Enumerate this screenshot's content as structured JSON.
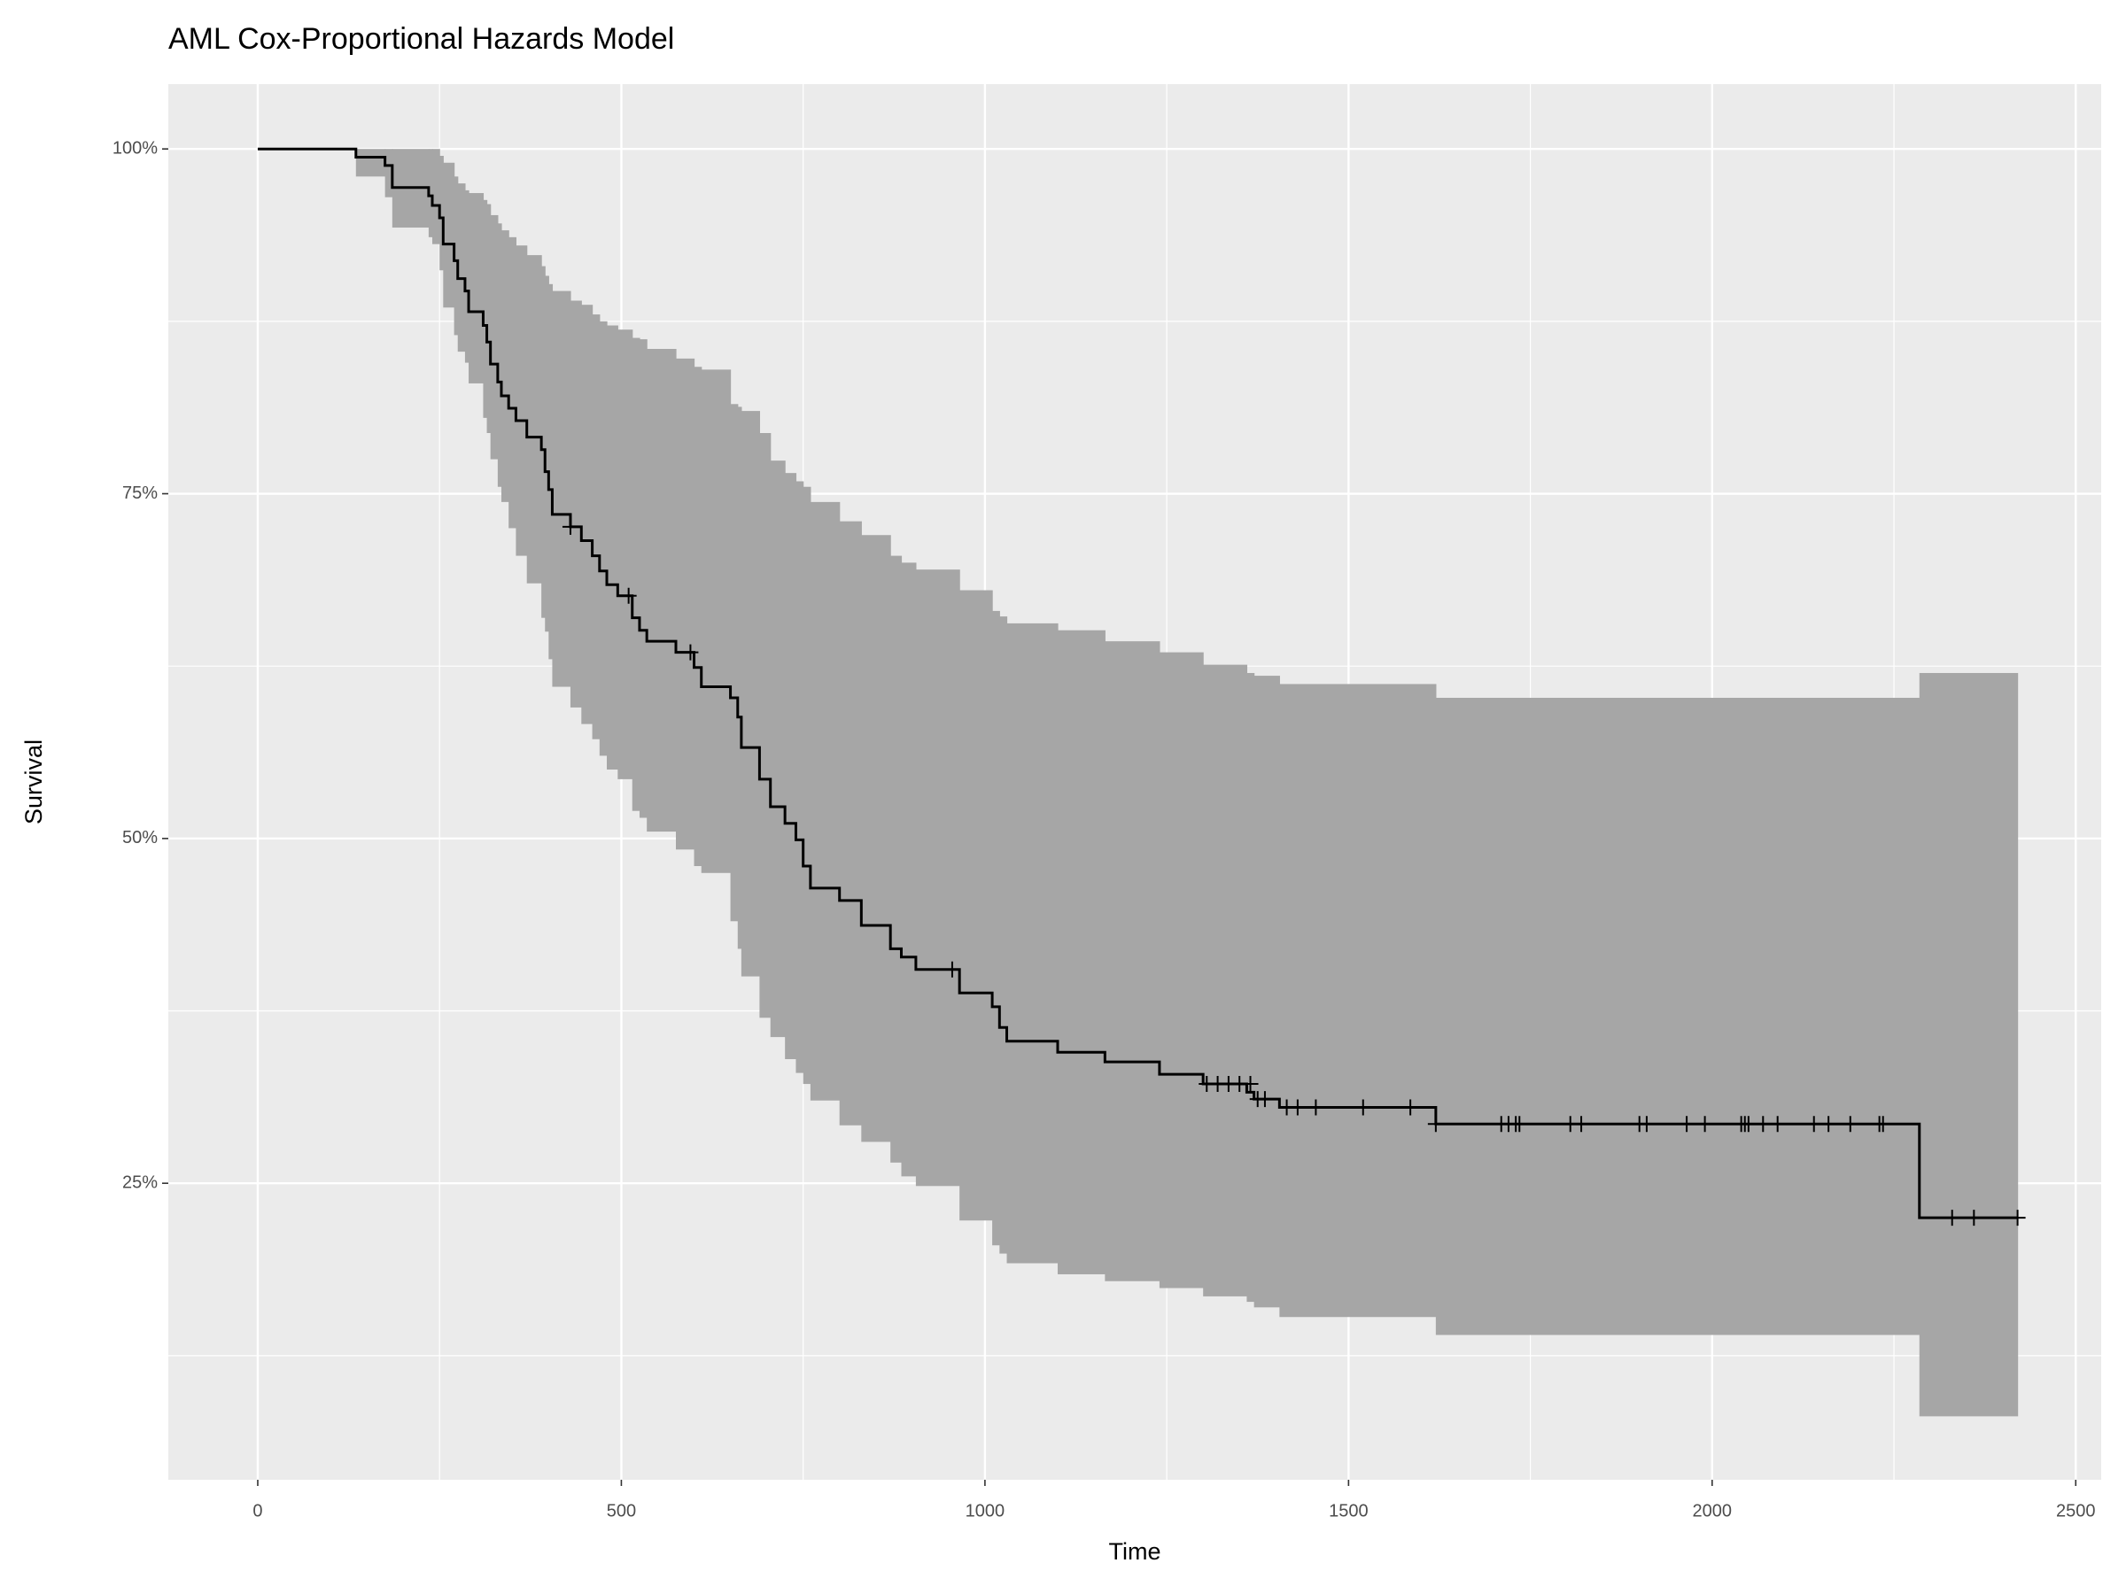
{
  "chart_data": {
    "type": "step",
    "title": "AML Cox-Proportional Hazards Model",
    "x_label": "Time",
    "y_label": "Survival",
    "x": [
      0,
      135,
      175,
      185,
      235,
      240,
      250,
      255,
      270,
      275,
      285,
      290,
      310,
      315,
      320,
      330,
      335,
      345,
      355,
      370,
      390,
      395,
      400,
      405,
      430,
      445,
      460,
      470,
      480,
      495,
      515,
      525,
      535,
      575,
      600,
      610,
      650,
      660,
      665,
      690,
      705,
      725,
      740,
      750,
      760,
      800,
      830,
      870,
      885,
      905,
      965,
      1010,
      1020,
      1030,
      1100,
      1165,
      1240,
      1300,
      1360,
      1370,
      1405,
      1620,
      2285,
      2420
    ],
    "values": [
      100,
      99.4,
      98.8,
      97.2,
      96.6,
      95.9,
      95.0,
      93.1,
      91.9,
      90.6,
      89.7,
      88.2,
      87.2,
      86.0,
      84.4,
      83.1,
      82.1,
      81.2,
      80.3,
      79.1,
      78.2,
      76.6,
      75.3,
      73.5,
      72.6,
      71.6,
      70.5,
      69.4,
      68.4,
      67.6,
      66.0,
      65.1,
      64.3,
      63.5,
      62.4,
      61.0,
      60.2,
      58.8,
      56.6,
      54.3,
      52.3,
      51.1,
      49.9,
      48.0,
      46.4,
      45.5,
      43.7,
      42.0,
      41.4,
      40.5,
      38.8,
      37.8,
      36.3,
      35.3,
      34.5,
      33.8,
      32.9,
      32.2,
      31.6,
      31.1,
      30.5,
      29.3,
      22.5,
      22.5
    ],
    "upper": [
      100,
      100,
      100,
      100,
      100,
      100,
      99.5,
      99.0,
      98.0,
      97.5,
      97.0,
      96.8,
      96.3,
      96.0,
      95.2,
      94.6,
      94.1,
      93.6,
      93.0,
      92.3,
      91.5,
      90.8,
      90.2,
      89.7,
      89.0,
      88.7,
      88.0,
      87.5,
      87.2,
      86.9,
      86.3,
      86.2,
      85.5,
      84.8,
      84.2,
      84.0,
      81.5,
      81.3,
      81.0,
      79.4,
      77.4,
      76.5,
      75.9,
      75.5,
      74.4,
      73.0,
      72.0,
      70.5,
      70.0,
      69.5,
      68.0,
      66.5,
      66.1,
      65.6,
      65.1,
      64.3,
      63.5,
      62.6,
      62.0,
      61.8,
      61.2,
      60.2,
      62.0,
      62.0
    ],
    "lower": [
      100,
      98.0,
      96.5,
      94.3,
      93.6,
      93.1,
      91.2,
      88.5,
      86.5,
      85.3,
      84.5,
      83.0,
      80.5,
      79.4,
      77.5,
      75.5,
      74.4,
      72.5,
      70.5,
      68.5,
      66.0,
      65.0,
      63.0,
      61.0,
      59.5,
      58.3,
      57.2,
      56.0,
      55.0,
      54.3,
      52.0,
      51.5,
      50.5,
      49.2,
      48.0,
      47.5,
      44.0,
      42.0,
      40.0,
      37.0,
      35.6,
      34.0,
      33.0,
      32.2,
      31.0,
      29.2,
      28.0,
      26.5,
      25.5,
      24.8,
      22.3,
      20.5,
      19.9,
      19.2,
      18.4,
      17.9,
      17.4,
      16.8,
      16.4,
      16.0,
      15.3,
      14.0,
      8.1,
      8.1
    ],
    "censor_x": [
      430,
      510,
      595,
      955,
      1305,
      1320,
      1335,
      1350,
      1365,
      1375,
      1385,
      1415,
      1430,
      1455,
      1520,
      1585,
      1620,
      1710,
      1720,
      1730,
      1735,
      1805,
      1820,
      1900,
      1910,
      1965,
      1990,
      2040,
      2045,
      2050,
      2070,
      2090,
      2140,
      2160,
      2190,
      2230,
      2235,
      2330,
      2360,
      2420
    ],
    "censor_values": [
      72.6,
      67.6,
      63.5,
      40.5,
      32.2,
      32.2,
      32.2,
      32.2,
      32.2,
      31.1,
      31.1,
      30.5,
      30.5,
      30.5,
      30.5,
      30.5,
      29.3,
      29.3,
      29.3,
      29.3,
      29.3,
      29.3,
      29.3,
      29.3,
      29.3,
      29.3,
      29.3,
      29.3,
      29.3,
      29.3,
      29.3,
      29.3,
      29.3,
      29.3,
      29.3,
      29.3,
      29.3,
      22.5,
      22.5,
      22.5
    ],
    "xlim": [
      -123,
      2535
    ],
    "ylim": [
      3.5,
      104.7
    ],
    "xticks": [
      0,
      500,
      1000,
      1500,
      2000,
      2500
    ],
    "yticks": [
      {
        "value": 25,
        "label": "25%"
      },
      {
        "value": 50,
        "label": "50%"
      },
      {
        "value": 75,
        "label": "75%"
      },
      {
        "value": 100,
        "label": "100%"
      }
    ],
    "grid": true,
    "color": "#000000",
    "band_color": "#a6a6a6",
    "panel_color": "#ebebeb"
  }
}
